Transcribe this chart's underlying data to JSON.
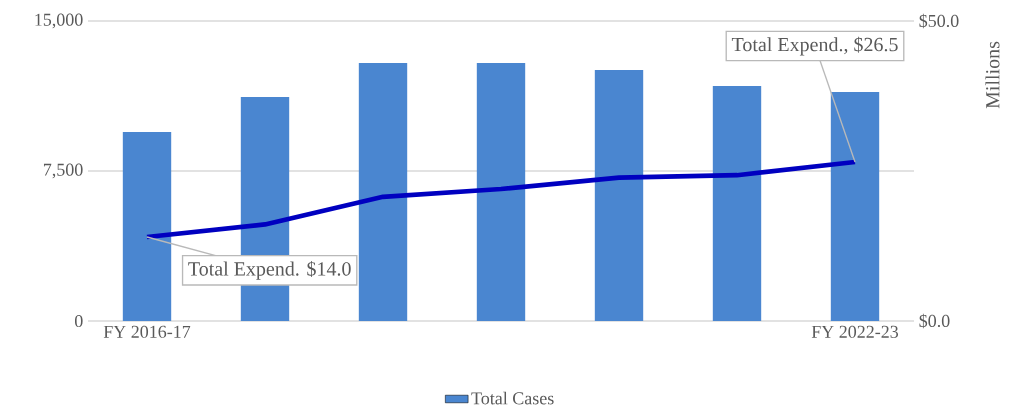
{
  "chart_data": {
    "type": "bar",
    "categories": [
      "FY 2016-17",
      null,
      null,
      null,
      null,
      null,
      "FY 2022-23"
    ],
    "y2label": "Millions",
    "ylim": [
      0,
      15000
    ],
    "yticks": [
      0,
      {
        "value": 7500,
        "label": "7,500"
      },
      {
        "value": 15000,
        "label": "15,000"
      }
    ],
    "y2lim": [
      0,
      50
    ],
    "y2ticks": [
      {
        "value": 0,
        "label": "$0.0"
      },
      {
        "value": 50,
        "label": "$50.0"
      }
    ],
    "grid": "y",
    "legend": "bottom",
    "series": [
      {
        "name": "Total Cases",
        "color": "#4a86d0",
        "values": [
          9450,
          11200,
          12900,
          12900,
          12550,
          11750,
          11450
        ]
      },
      {
        "type": "line",
        "axis": "y2",
        "color": "#0000c0",
        "values": [
          14.0,
          16.1,
          20.7,
          22.0,
          23.9,
          24.3,
          26.5
        ],
        "value_labels": [
          "Total Expend. $14.0",
          null,
          null,
          null,
          null,
          null,
          "Total Expend., $26.5"
        ]
      }
    ]
  }
}
